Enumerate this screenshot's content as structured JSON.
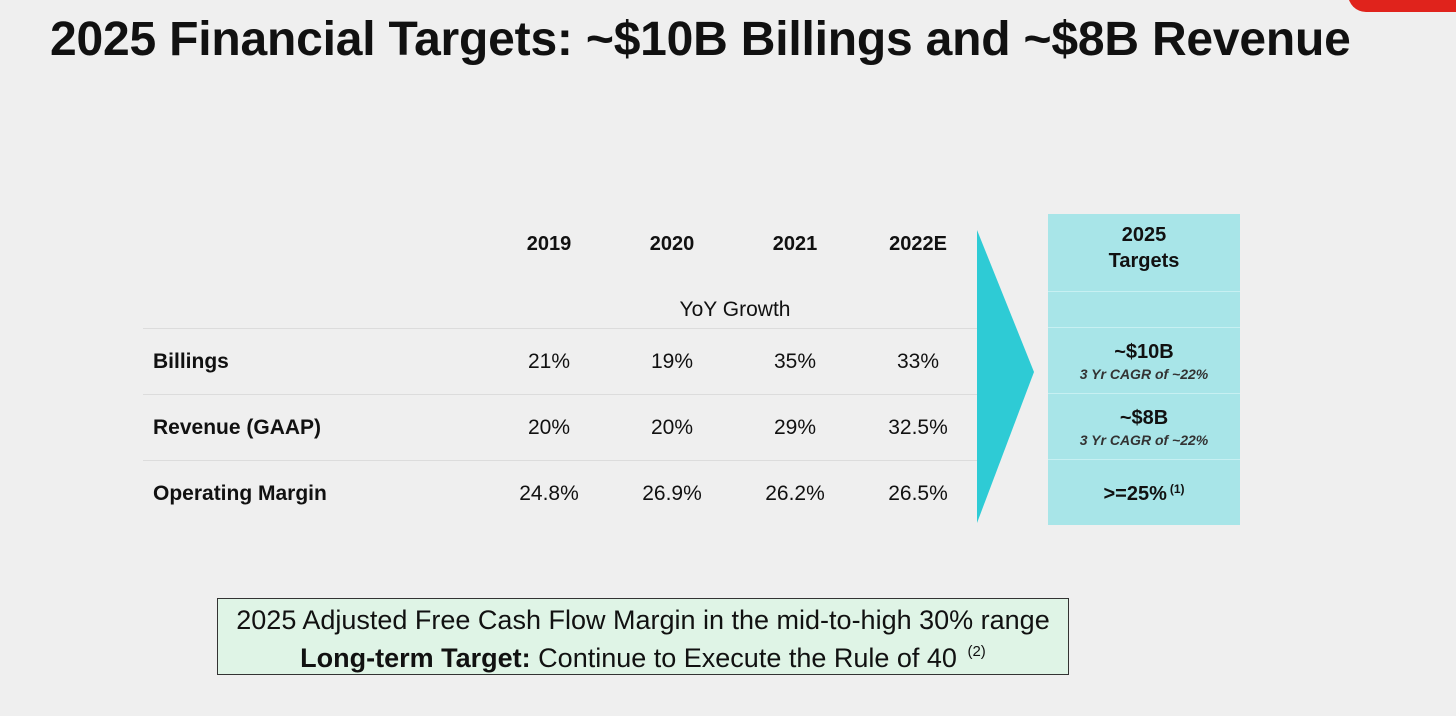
{
  "title": "2025 Financial Targets: ~$10B Billings and ~$8B Revenue",
  "table": {
    "columns": [
      "2019",
      "2020",
      "2021",
      "2022E"
    ],
    "subheader": "YoY Growth",
    "rows": [
      {
        "label": "Billings",
        "values": [
          "21%",
          "19%",
          "35%",
          "33%"
        ]
      },
      {
        "label": "Revenue (GAAP)",
        "values": [
          "20%",
          "20%",
          "29%",
          "32.5%"
        ]
      },
      {
        "label": "Operating Margin",
        "values": [
          "24.8%",
          "26.9%",
          "26.2%",
          "26.5%"
        ]
      }
    ]
  },
  "targets": {
    "header_line1": "2025",
    "header_line2": "Targets",
    "billings": {
      "value": "~$10B",
      "note": "3 Yr CAGR of ~22%"
    },
    "revenue": {
      "value": "~$8B",
      "note": "3 Yr CAGR of ~22%"
    },
    "operating_margin": {
      "value": ">=25%",
      "footnote": "(1)"
    }
  },
  "note_box": {
    "line1": "2025 Adjusted Free Cash Flow Margin in the mid-to-high 30% range",
    "line2_bold": "Long-term Target:",
    "line2_rest": " Continue to Execute the Rule of 40",
    "line2_footnote": "(2)"
  },
  "colors": {
    "accent_red": "#e0231c",
    "arrow_teal": "#2ecbd5",
    "targets_bg": "#a8e5e8",
    "note_bg": "#dff4e6"
  }
}
